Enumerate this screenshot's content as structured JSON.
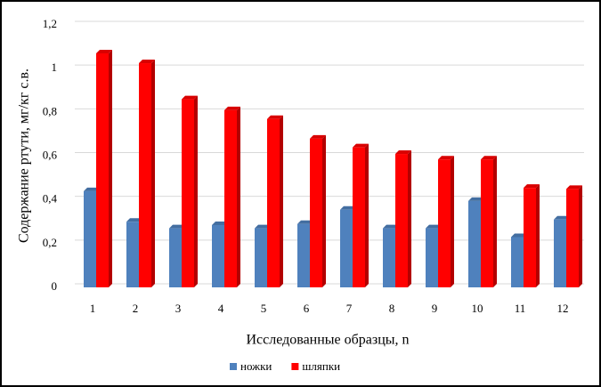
{
  "chart_data": {
    "type": "bar",
    "y_label": "Содержание ртути, мг/кг с.в.",
    "x_label": "Исследованные образцы, n",
    "categories": [
      "1",
      "2",
      "3",
      "4",
      "5",
      "6",
      "7",
      "8",
      "9",
      "10",
      "11",
      "12"
    ],
    "series": [
      {
        "name": "ножки",
        "color": "#4f81bd",
        "values": [
          0.44,
          0.3,
          0.27,
          0.285,
          0.27,
          0.29,
          0.355,
          0.27,
          0.27,
          0.395,
          0.23,
          0.31
        ]
      },
      {
        "name": "шляпки",
        "color": "#ff0000",
        "values": [
          1.07,
          1.025,
          0.86,
          0.81,
          0.77,
          0.68,
          0.64,
          0.61,
          0.585,
          0.585,
          0.455,
          0.45
        ]
      }
    ],
    "ylim": [
      0,
      1.2
    ],
    "yticks": [
      0,
      {
        "value": 0.2,
        "label": "0,2"
      },
      {
        "value": 0.4,
        "label": "0,4"
      },
      {
        "value": 0.6,
        "label": "0,6"
      },
      {
        "value": 0.8,
        "label": "0,8"
      },
      1,
      {
        "value": 1.2,
        "label": "1,2"
      }
    ],
    "grid": true
  }
}
